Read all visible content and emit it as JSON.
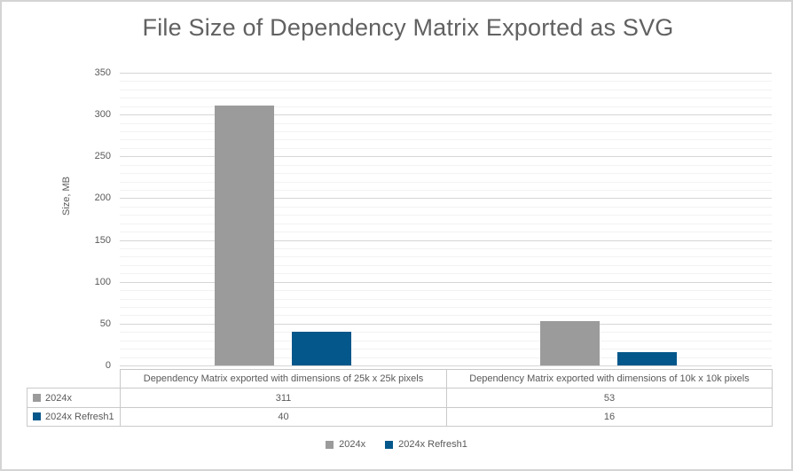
{
  "chart_data": {
    "type": "bar",
    "title": "File Size of Dependency Matrix Exported as SVG",
    "ylabel": "Size, MB",
    "categories": [
      "Dependency Matrix exported with dimensions of 25k x 25k pixels",
      "Dependency Matrix exported with dimensions of 10k x 10k pixels"
    ],
    "series": [
      {
        "name": "2024x",
        "color": "#9B9B9B",
        "values": [
          311,
          53
        ]
      },
      {
        "name": "2024x Refresh1",
        "color": "#04578B",
        "values": [
          40,
          16
        ]
      }
    ],
    "ylim": [
      0,
      350
    ],
    "yticks": [
      0,
      50,
      100,
      150,
      200,
      250,
      300,
      350
    ],
    "ytick_interval": 50,
    "yminor_interval": 10,
    "grid": true,
    "legend_position": "bottom",
    "legend_entries": [
      "2024x",
      "2024x Refresh1"
    ],
    "data_table_shown": true
  },
  "colors": {
    "background": "#FFFFFF",
    "chart_border": "#D4D4D4",
    "title_text": "#616161",
    "axis_text": "#595959",
    "major_gridline": "#D6D6D6",
    "minor_gridline": "#F2F2F2",
    "table_border": "#C9C9C9",
    "series_2024x": "#9B9B9B",
    "series_2024x_refresh1": "#04578B"
  }
}
